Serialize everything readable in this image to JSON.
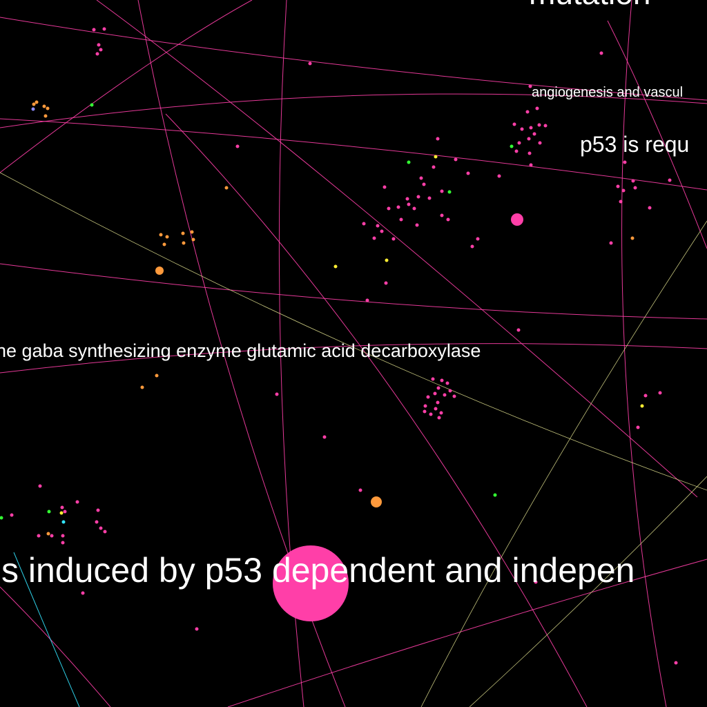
{
  "colors": {
    "background": "#000000",
    "label": "#ffffff",
    "magenta": "#ff3fa8",
    "orange": "#ff9a3c",
    "green": "#33ff33",
    "yellow": "#ffee33",
    "cyan": "#33e6ff",
    "lavender": "#8c8cff",
    "olive": "#d8d88a"
  },
  "labels": [
    {
      "id": "mutation",
      "text": "mutation"
    },
    {
      "id": "angiogenesis",
      "text": "angiogenesis and vascul"
    },
    {
      "id": "p53-required",
      "text": "p53 is requ"
    },
    {
      "id": "gaba",
      "text": "he gaba synthesizing enzyme glutamic acid decarboxylase"
    },
    {
      "id": "induced",
      "text": "s induced by p53 dependent and indepen"
    }
  ]
}
